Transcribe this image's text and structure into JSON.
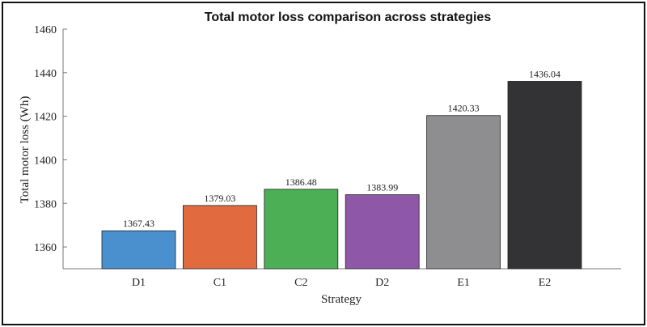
{
  "chart_data": {
    "type": "bar",
    "title": "Total motor loss comparison across strategies",
    "xlabel": "Strategy",
    "ylabel": "Total motor loss (Wh)",
    "categories": [
      "D1",
      "C1",
      "C2",
      "D2",
      "E1",
      "E2"
    ],
    "values": [
      1367.43,
      1379.03,
      1386.48,
      1383.99,
      1420.33,
      1436.04
    ],
    "value_labels": [
      "1367.43",
      "1379.03",
      "1386.48",
      "1383.99",
      "1420.33",
      "1436.04"
    ],
    "colors": [
      "#4a90cf",
      "#e16a3f",
      "#4caf55",
      "#8e57a8",
      "#8e8e90",
      "#333335"
    ],
    "ylim": [
      1350,
      1460
    ],
    "yticks": [
      1360,
      1380,
      1400,
      1420,
      1440,
      1460
    ],
    "ytick_labels": [
      "1360",
      "1380",
      "1400",
      "1420",
      "1440",
      "1460"
    ],
    "grid": false,
    "legend": "none"
  }
}
